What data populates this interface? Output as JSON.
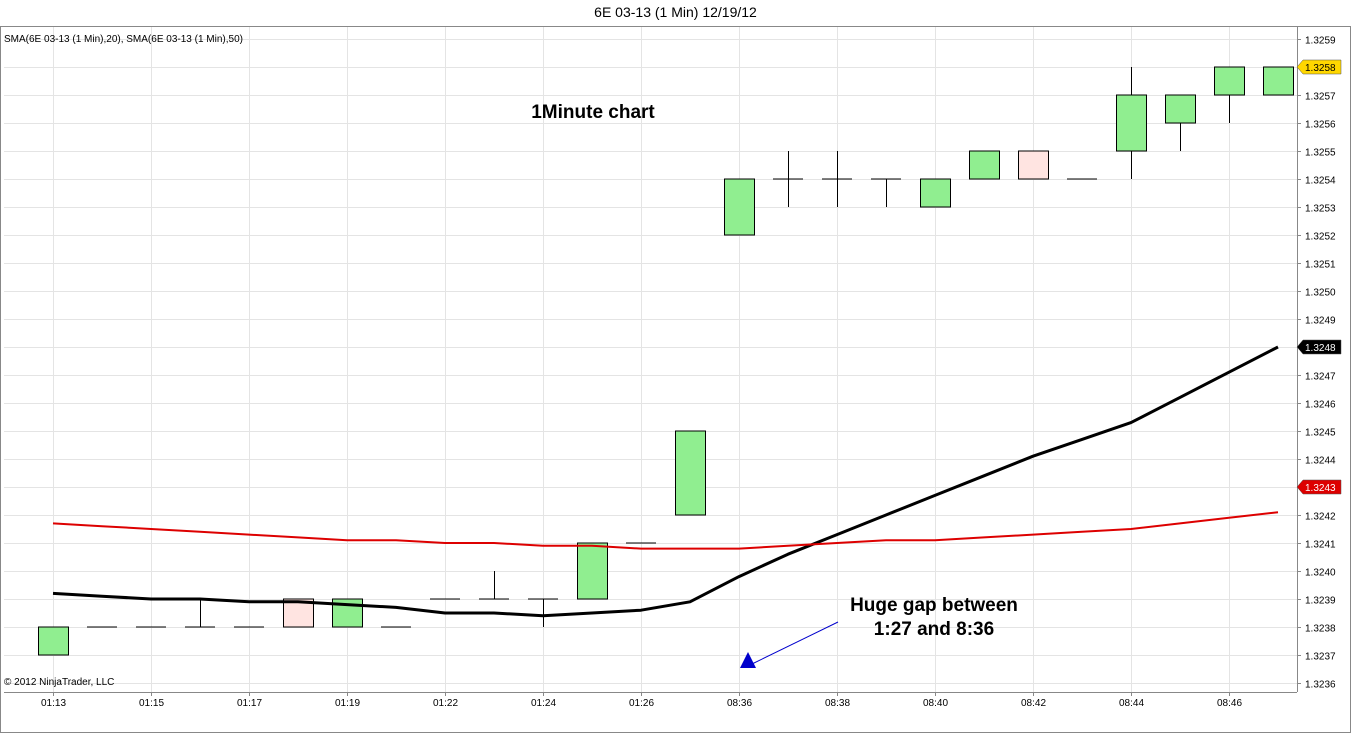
{
  "title": "6E 03-13 (1 Min)  12/19/12",
  "indicator_legend": "SMA(6E 03-13 (1 Min),20), SMA(6E 03-13 (1 Min),50)",
  "copyright": "© 2012 NinjaTrader, LLC",
  "annotations": {
    "chart_label": "1Minute chart",
    "gap_line1": "Huge gap between",
    "gap_line2": "1:27 and 8:36"
  },
  "colors": {
    "up_fill": "#90ee90",
    "down_fill": "#ffe4e1",
    "sma20": "#000000",
    "sma50": "#dd0000",
    "price_tag": "#ffd700",
    "arrow": "#0000cc"
  },
  "chart_data": {
    "type": "candlestick",
    "ylim": [
      1.32355,
      1.32595
    ],
    "y_ticks": [
      "1.3236",
      "1.3237",
      "1.3238",
      "1.3239",
      "1.3240",
      "1.3241",
      "1.3242",
      "1.3243",
      "1.3244",
      "1.3245",
      "1.3246",
      "1.3247",
      "1.3248",
      "1.3249",
      "1.3250",
      "1.3251",
      "1.3252",
      "1.3253",
      "1.3254",
      "1.3255",
      "1.3256",
      "1.3257",
      "1.3258",
      "1.3259"
    ],
    "x_labels": [
      "01:13",
      "01:15",
      "01:17",
      "01:19",
      "01:22",
      "01:24",
      "01:26",
      "08:36",
      "08:38",
      "08:40",
      "08:42",
      "08:44",
      "08:46"
    ],
    "bars": [
      {
        "o": 1.3237,
        "h": 1.3238,
        "l": 1.3237,
        "c": 1.3238
      },
      {
        "o": 1.3238,
        "h": 1.3238,
        "l": 1.3238,
        "c": 1.3238
      },
      {
        "o": 1.3238,
        "h": 1.3238,
        "l": 1.3238,
        "c": 1.3238
      },
      {
        "o": 1.3238,
        "h": 1.3239,
        "l": 1.3238,
        "c": 1.3238
      },
      {
        "o": 1.3238,
        "h": 1.3238,
        "l": 1.3238,
        "c": 1.3238
      },
      {
        "o": 1.3239,
        "h": 1.3239,
        "l": 1.3238,
        "c": 1.3238
      },
      {
        "o": 1.3238,
        "h": 1.3239,
        "l": 1.3238,
        "c": 1.3239
      },
      {
        "o": 1.3238,
        "h": 1.3238,
        "l": 1.3238,
        "c": 1.3238
      },
      {
        "o": 1.3239,
        "h": 1.3239,
        "l": 1.3239,
        "c": 1.3239
      },
      {
        "o": 1.3239,
        "h": 1.324,
        "l": 1.3239,
        "c": 1.3239
      },
      {
        "o": 1.3239,
        "h": 1.3239,
        "l": 1.3238,
        "c": 1.3239
      },
      {
        "o": 1.3239,
        "h": 1.3241,
        "l": 1.3239,
        "c": 1.3241
      },
      {
        "o": 1.3241,
        "h": 1.3241,
        "l": 1.3241,
        "c": 1.3241
      },
      {
        "o": 1.3242,
        "h": 1.3245,
        "l": 1.3242,
        "c": 1.3245
      },
      {
        "o": 1.3252,
        "h": 1.3254,
        "l": 1.3252,
        "c": 1.3254
      },
      {
        "o": 1.3254,
        "h": 1.3255,
        "l": 1.3253,
        "c": 1.3254
      },
      {
        "o": 1.3254,
        "h": 1.3255,
        "l": 1.3253,
        "c": 1.3254
      },
      {
        "o": 1.3254,
        "h": 1.3254,
        "l": 1.3253,
        "c": 1.3254
      },
      {
        "o": 1.3253,
        "h": 1.3254,
        "l": 1.3253,
        "c": 1.3254
      },
      {
        "o": 1.3254,
        "h": 1.3255,
        "l": 1.3254,
        "c": 1.3255
      },
      {
        "o": 1.3255,
        "h": 1.3255,
        "l": 1.3254,
        "c": 1.3254
      },
      {
        "o": 1.3254,
        "h": 1.3254,
        "l": 1.3254,
        "c": 1.3254
      },
      {
        "o": 1.3255,
        "h": 1.3258,
        "l": 1.3254,
        "c": 1.3257
      },
      {
        "o": 1.3256,
        "h": 1.3257,
        "l": 1.3255,
        "c": 1.3257
      },
      {
        "o": 1.3257,
        "h": 1.3258,
        "l": 1.3256,
        "c": 1.3258
      },
      {
        "o": 1.3257,
        "h": 1.3258,
        "l": 1.3257,
        "c": 1.3258
      }
    ],
    "series": [
      {
        "values": [
          1.32392,
          1.32391,
          1.3239,
          1.3239,
          1.32389,
          1.32389,
          1.32388,
          1.32387,
          1.32385,
          1.32385,
          1.32384,
          1.32385,
          1.32386,
          1.32389,
          1.32398,
          1.32406,
          1.32413,
          1.3242,
          1.32427,
          1.32434,
          1.32441,
          1.32447,
          1.32453,
          1.32462,
          1.32471,
          1.3248
        ]
      },
      {
        "values": [
          1.32417,
          1.32416,
          1.32415,
          1.32414,
          1.32413,
          1.32412,
          1.32411,
          1.32411,
          1.3241,
          1.3241,
          1.32409,
          1.32409,
          1.32408,
          1.32408,
          1.32408,
          1.32409,
          1.3241,
          1.32411,
          1.32411,
          1.32412,
          1.32413,
          1.32414,
          1.32415,
          1.32417,
          1.32419,
          1.32421
        ]
      }
    ],
    "price_labels": [
      "1.3258",
      "1.3248",
      "1.3243"
    ]
  }
}
